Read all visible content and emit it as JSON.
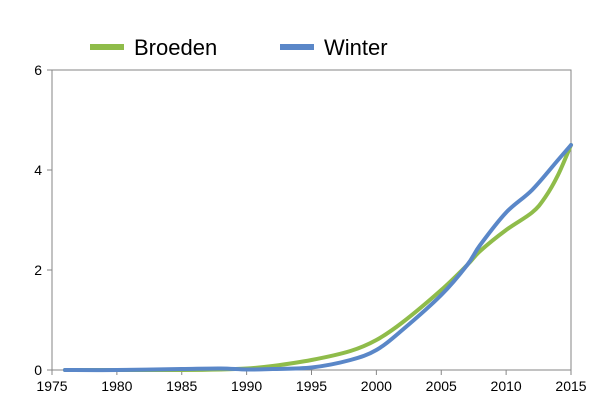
{
  "chart_data": {
    "type": "line",
    "title": "",
    "xlabel": "",
    "ylabel": "",
    "xlim": [
      1975,
      2015
    ],
    "ylim": [
      0,
      6
    ],
    "x_ticks": [
      1975,
      1980,
      1985,
      1990,
      1995,
      2000,
      2005,
      2010,
      2015
    ],
    "y_ticks": [
      0,
      2,
      4,
      6
    ],
    "grid": false,
    "legend_position": "top",
    "series": [
      {
        "name": "Broeden",
        "color": "#8fbc4a",
        "x": [
          1976,
          1980,
          1985,
          1988,
          1990,
          1992,
          1995,
          1998,
          2000,
          2002,
          2005,
          2007,
          2008,
          2010,
          2012,
          2013,
          2014,
          2015
        ],
        "y": [
          0.0,
          0.0,
          0.0,
          0.01,
          0.03,
          0.08,
          0.2,
          0.38,
          0.6,
          0.95,
          1.6,
          2.1,
          2.38,
          2.8,
          3.15,
          3.45,
          3.9,
          4.5
        ]
      },
      {
        "name": "Winter",
        "color": "#5a87c8",
        "x": [
          1976,
          1980,
          1985,
          1988,
          1990,
          1992,
          1995,
          1998,
          2000,
          2002,
          2005,
          2007,
          2008,
          2010,
          2012,
          2014,
          2015
        ],
        "y": [
          0.0,
          0.0,
          0.02,
          0.03,
          0.01,
          0.02,
          0.05,
          0.2,
          0.4,
          0.8,
          1.5,
          2.1,
          2.5,
          3.15,
          3.6,
          4.2,
          4.5
        ]
      }
    ]
  }
}
